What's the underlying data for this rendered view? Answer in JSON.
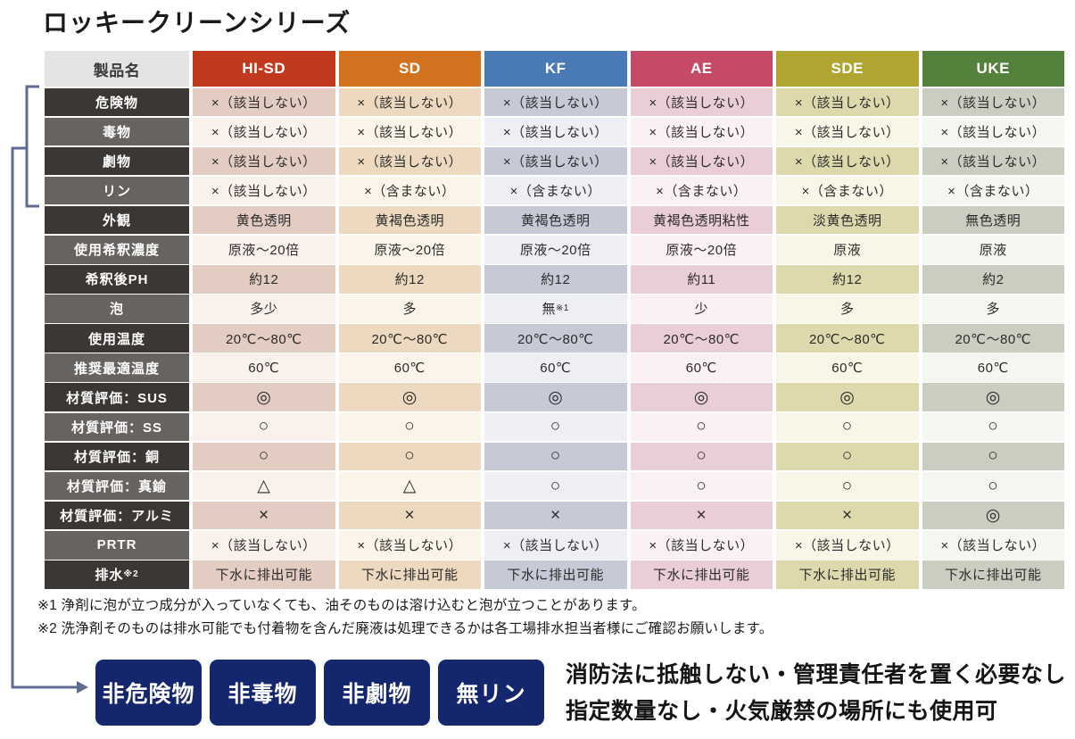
{
  "title": "ロッキークリーンシリーズ",
  "table": {
    "corner_label": "製品名",
    "products": [
      {
        "name": "HI-SD",
        "header_color": "#c13a1d",
        "tint_strong": "#e3ccc2",
        "tint_light": "#faf1ec"
      },
      {
        "name": "SD",
        "header_color": "#d2721e",
        "tint_strong": "#ecd9bf",
        "tint_light": "#fbf4e9"
      },
      {
        "name": "KF",
        "header_color": "#4a7ab5",
        "tint_strong": "#c5cad6",
        "tint_light": "#edeff5"
      },
      {
        "name": "AE",
        "header_color": "#c54a66",
        "tint_strong": "#eaced6",
        "tint_light": "#fbf1f3"
      },
      {
        "name": "SDE",
        "header_color": "#b0a531",
        "tint_strong": "#ddd9ad",
        "tint_light": "#f8f7e7"
      },
      {
        "name": "UKE",
        "header_color": "#54813b",
        "tint_strong": "#c9cec1",
        "tint_light": "#f4f6f1"
      }
    ],
    "rows": [
      {
        "label": "危険物",
        "values": [
          "×（該当しない）",
          "×（該当しない）",
          "×（該当しない）",
          "×（該当しない）",
          "×（該当しない）",
          "×（該当しない）"
        ]
      },
      {
        "label": "毒物",
        "values": [
          "×（該当しない）",
          "×（該当しない）",
          "×（該当しない）",
          "×（該当しない）",
          "×（該当しない）",
          "×（該当しない）"
        ]
      },
      {
        "label": "劇物",
        "values": [
          "×（該当しない）",
          "×（該当しない）",
          "×（該当しない）",
          "×（該当しない）",
          "×（該当しない）",
          "×（該当しない）"
        ]
      },
      {
        "label": "リン",
        "values": [
          "×（該当しない）",
          "×（含まない）",
          "×（含まない）",
          "×（含まない）",
          "×（含まない）",
          "×（含まない）"
        ]
      },
      {
        "label": "外観",
        "values": [
          "黄色透明",
          "黄褐色透明",
          "黄褐色透明",
          "黄褐色透明粘性",
          "淡黄色透明",
          "無色透明"
        ]
      },
      {
        "label": "使用希釈濃度",
        "values": [
          "原液～20倍",
          "原液～20倍",
          "原液～20倍",
          "原液～20倍",
          "原液",
          "原液"
        ]
      },
      {
        "label": "希釈後PH",
        "values": [
          "約12",
          "約12",
          "約12",
          "約11",
          "約12",
          "約2"
        ]
      },
      {
        "label": "泡",
        "values": [
          "多少",
          "多",
          "無※1",
          "少",
          "多",
          "多"
        ]
      },
      {
        "label": "使用温度",
        "values": [
          "20℃～80℃",
          "20℃～80℃",
          "20℃～80℃",
          "20℃～80℃",
          "20℃～80℃",
          "20℃～80℃"
        ]
      },
      {
        "label": "推奨最適温度",
        "values": [
          "60℃",
          "60℃",
          "60℃",
          "60℃",
          "60℃",
          "60℃"
        ]
      },
      {
        "label": "材質評価：SUS",
        "values": [
          "◎",
          "◎",
          "◎",
          "◎",
          "◎",
          "◎"
        ]
      },
      {
        "label": "材質評価：SS",
        "values": [
          "○",
          "○",
          "○",
          "○",
          "○",
          "○"
        ]
      },
      {
        "label": "材質評価：銅",
        "values": [
          "○",
          "○",
          "○",
          "○",
          "○",
          "○"
        ]
      },
      {
        "label": "材質評価：真鍮",
        "values": [
          "△",
          "△",
          "○",
          "○",
          "○",
          "○"
        ]
      },
      {
        "label": "材質評価：アルミ",
        "values": [
          "×",
          "×",
          "×",
          "×",
          "×",
          "◎"
        ]
      },
      {
        "label": "PRTR",
        "values": [
          "×（該当しない）",
          "×（該当しない）",
          "×（該当しない）",
          "×（該当しない）",
          "×（該当しない）",
          "×（該当しない）"
        ]
      },
      {
        "label": "排水※2",
        "values": [
          "下水に排出可能",
          "下水に排出可能",
          "下水に排出可能",
          "下水に排出可能",
          "下水に排出可能",
          "下水に排出可能"
        ]
      }
    ],
    "label_colors": {
      "dark": "#3b3734",
      "light": "#676360"
    },
    "corner_bg": "#e4e4e4"
  },
  "footnotes": [
    "※1 浄剤に泡が立つ成分が入っていなくても、油そのものは溶け込むと泡が立つことがあります。",
    "※2 洗浄剤そのものは排水可能でも付着物を含んだ廃液は処理できるかは各工場排水担当者様にご確認お願いします。"
  ],
  "badges": [
    "非危険物",
    "非毒物",
    "非劇物",
    "無リン"
  ],
  "badge_color": "#14266d",
  "bracket_color": "#5f6b92",
  "claims": [
    "消防法に抵触しない・管理責任者を置く必要なし",
    "指定数量なし・火気厳禁の場所にも使用可"
  ]
}
